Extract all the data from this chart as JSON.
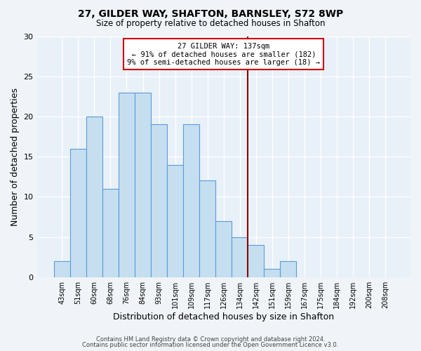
{
  "title": "27, GILDER WAY, SHAFTON, BARNSLEY, S72 8WP",
  "subtitle": "Size of property relative to detached houses in Shafton",
  "xlabel": "Distribution of detached houses by size in Shafton",
  "ylabel": "Number of detached properties",
  "bar_labels": [
    "43sqm",
    "51sqm",
    "60sqm",
    "68sqm",
    "76sqm",
    "84sqm",
    "93sqm",
    "101sqm",
    "109sqm",
    "117sqm",
    "126sqm",
    "134sqm",
    "142sqm",
    "151sqm",
    "159sqm",
    "167sqm",
    "175sqm",
    "184sqm",
    "192sqm",
    "200sqm",
    "208sqm"
  ],
  "bar_heights": [
    2,
    16,
    20,
    11,
    23,
    23,
    19,
    14,
    19,
    12,
    7,
    5,
    4,
    1,
    2,
    0,
    0,
    0,
    0,
    0,
    0
  ],
  "bar_color": "#c5dff0",
  "bar_edge_color": "#5b9bd5",
  "vline_index": 11.5,
  "vline_color": "#8b0000",
  "annotation_title": "27 GILDER WAY: 137sqm",
  "annotation_line1": "← 91% of detached houses are smaller (182)",
  "annotation_line2": "9% of semi-detached houses are larger (18) →",
  "annotation_box_color": "white",
  "annotation_box_edge": "#cc0000",
  "ylim": [
    0,
    30
  ],
  "yticks": [
    0,
    5,
    10,
    15,
    20,
    25,
    30
  ],
  "footer1": "Contains HM Land Registry data © Crown copyright and database right 2024.",
  "footer2": "Contains public sector information licensed under the Open Government Licence v3.0.",
  "background_color": "#f0f4f8",
  "plot_bg_color": "#e8f0f8",
  "grid_color": "white"
}
